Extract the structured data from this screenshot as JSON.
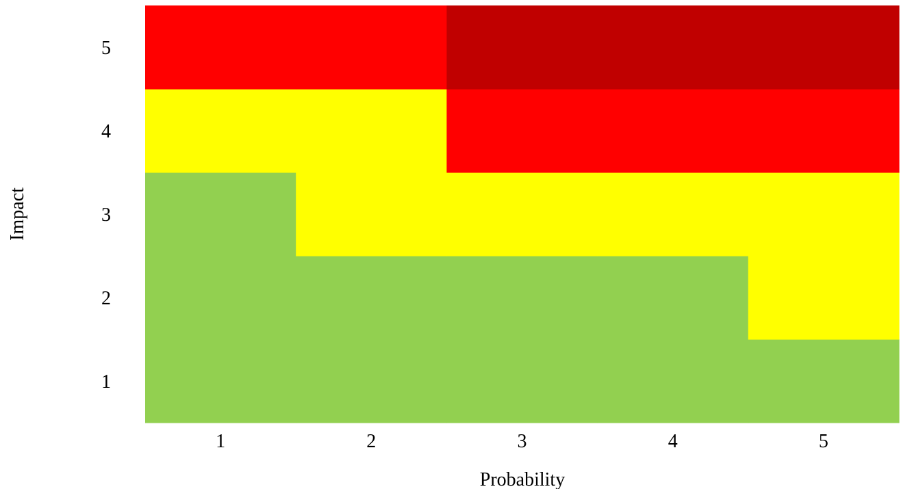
{
  "chart_data": {
    "type": "heatmap",
    "xlabel": "Probability",
    "ylabel": "Impact",
    "x": [
      1,
      2,
      3,
      4,
      5
    ],
    "y": [
      1,
      2,
      3,
      4,
      5
    ],
    "xticks": [
      "1",
      "2",
      "3",
      "4",
      "5"
    ],
    "yticks": [
      "1",
      "2",
      "3",
      "4",
      "5"
    ],
    "values": [
      [
        1,
        1,
        1,
        1,
        1
      ],
      [
        1,
        1,
        1,
        1,
        2
      ],
      [
        1,
        2,
        2,
        2,
        2
      ],
      [
        2,
        2,
        3,
        3,
        3
      ],
      [
        3,
        3,
        4,
        4,
        4
      ]
    ],
    "levels": {
      "1": "#92D050",
      "2": "#FFFF00",
      "3": "#FF0000",
      "4": "#C00000"
    },
    "grid": false,
    "legend": "none"
  }
}
